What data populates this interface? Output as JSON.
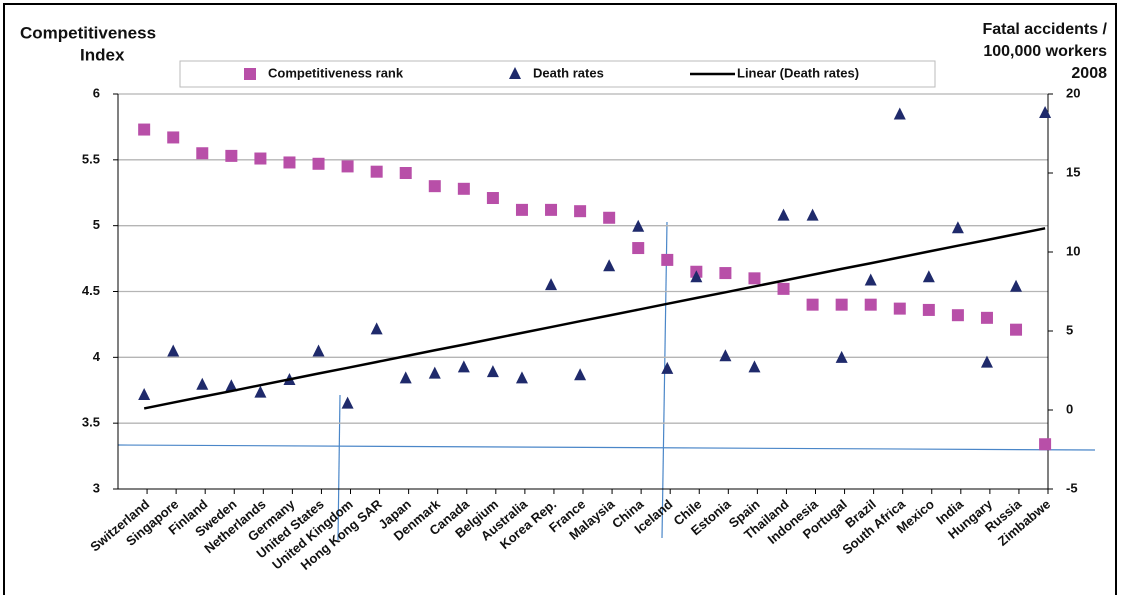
{
  "chart_data": {
    "type": "combo",
    "ylabel": [
      "Competitiveness",
      "Index"
    ],
    "y2label": [
      "Fatal accidents /",
      "100,000 workers",
      "2008"
    ],
    "categories": [
      "Switzerland",
      "Singapore",
      "Finland",
      "Sweden",
      "Netherlands",
      "Germany",
      "United States",
      "United Kingdom",
      "Hong Kong SAR",
      "Japan",
      "Denmark",
      "Canada",
      "Belgium",
      "Australia",
      "Korea Rep.",
      "France",
      "Malaysia",
      "China",
      "Iceland",
      "Chile",
      "Estonia",
      "Spain",
      "Thailand",
      "Indonesia",
      "Portugal",
      "Brazil",
      "South Africa",
      "Mexico",
      "India",
      "Hungary",
      "Russia",
      "Zimbabwe"
    ],
    "series": [
      {
        "name": "Competitiveness rank",
        "color": "#b84fa8",
        "mark": "square",
        "values": [
          5.73,
          5.67,
          5.55,
          5.53,
          5.51,
          5.48,
          5.47,
          5.45,
          5.41,
          5.4,
          5.3,
          5.28,
          5.21,
          5.12,
          5.12,
          5.11,
          5.06,
          4.83,
          4.74,
          4.65,
          4.64,
          4.6,
          4.52,
          4.4,
          4.4,
          4.4,
          4.37,
          4.36,
          4.32,
          4.3,
          4.21,
          3.34
        ]
      },
      {
        "name": "Death rates",
        "color": "#1f2a6b",
        "mark": "triangle",
        "axis": "y2",
        "values": [
          0.95,
          3.7,
          1.6,
          1.5,
          1.1,
          1.9,
          3.7,
          0.4,
          5.1,
          2.0,
          2.3,
          2.7,
          2.4,
          2.0,
          7.9,
          2.2,
          9.1,
          11.6,
          2.6,
          8.4,
          3.4,
          2.7,
          12.3,
          12.3,
          3.3,
          8.2,
          18.7,
          8.4,
          11.5,
          3.0,
          7.8,
          18.8
        ]
      },
      {
        "name": "Linear (Death rates)",
        "color": "#000000",
        "mark": "line",
        "axis": "y2",
        "values": [
          0.1,
          0.47,
          0.84,
          1.2,
          1.57,
          1.94,
          2.31,
          2.67,
          3.04,
          3.41,
          3.78,
          4.14,
          4.51,
          4.88,
          5.25,
          5.62,
          5.98,
          6.35,
          6.72,
          7.09,
          7.45,
          7.82,
          8.19,
          8.56,
          8.93,
          9.29,
          9.66,
          10.03,
          10.4,
          10.76,
          11.13,
          11.5
        ]
      }
    ],
    "ylim": [
      3,
      6
    ],
    "yticks": [
      3,
      3.5,
      4,
      4.5,
      5,
      5.5,
      6
    ],
    "y2lim": [
      -5,
      20
    ],
    "y2ticks": [
      -5,
      0,
      5,
      10,
      15,
      20
    ],
    "grid": true
  }
}
